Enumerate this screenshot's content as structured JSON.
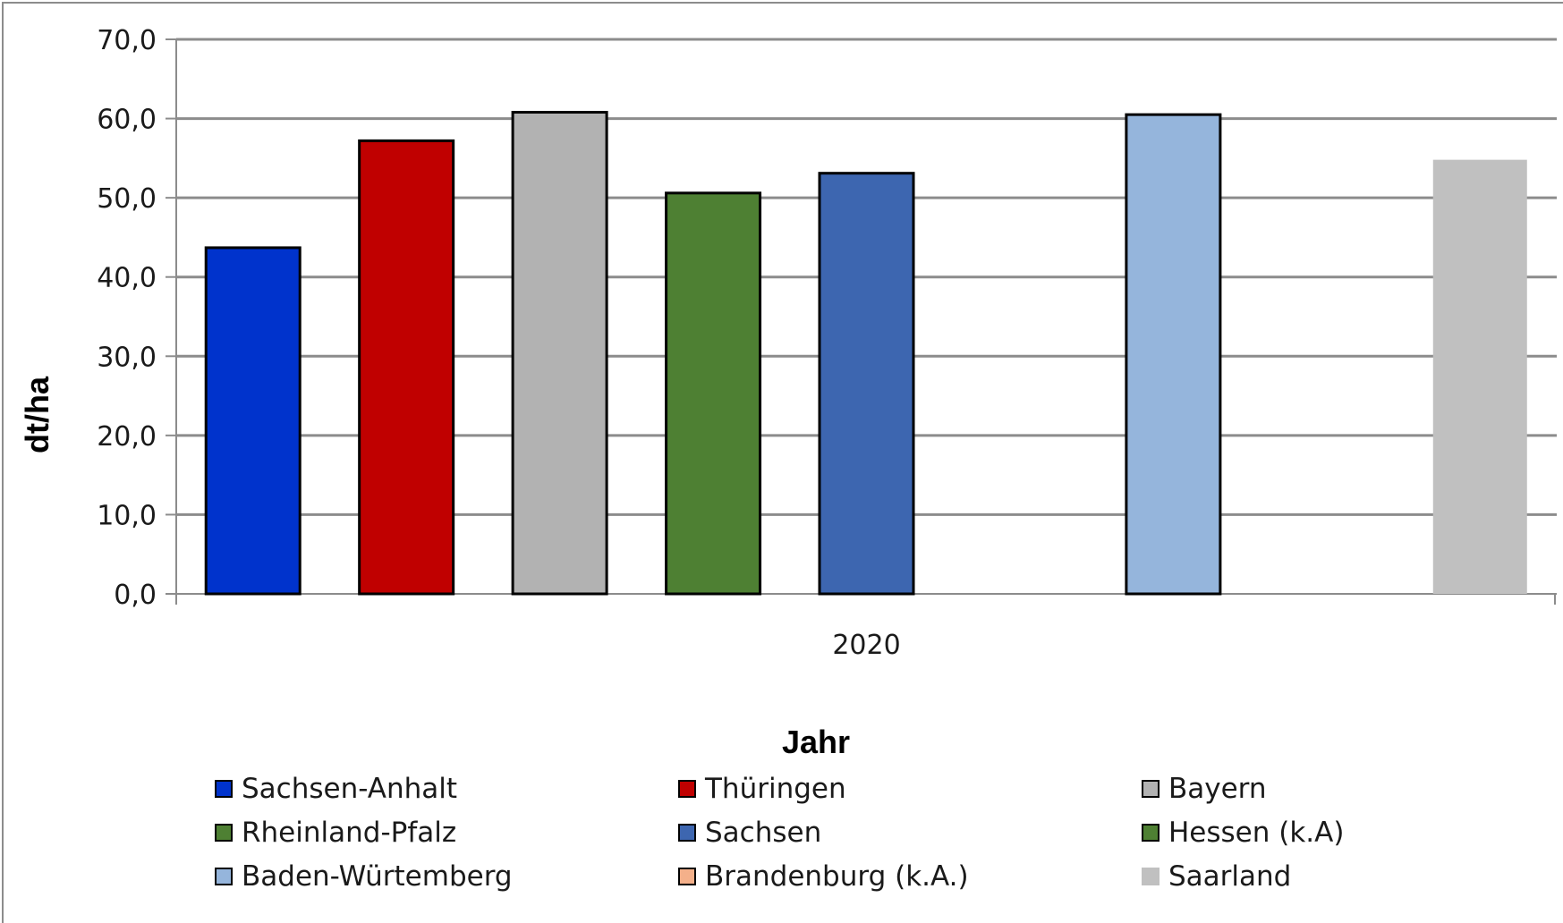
{
  "chart_data": {
    "type": "bar",
    "categories": [
      "2020"
    ],
    "xlabel": "Jahr",
    "ylabel": "dt/ha",
    "ylim": [
      0,
      70
    ],
    "yticks": [
      "0,0",
      "10,0",
      "20,0",
      "30,0",
      "40,0",
      "50,0",
      "60,0",
      "70,0"
    ],
    "grid": true,
    "legend_position": "bottom",
    "series": [
      {
        "name": "Sachsen-Anhalt",
        "value": 43.7,
        "color": "#0033cc",
        "outlined": true
      },
      {
        "name": "Thüringen",
        "value": 57.2,
        "color": "#c00000",
        "outlined": true
      },
      {
        "name": "Bayern",
        "value": 60.8,
        "color": "#b2b2b2",
        "outlined": true
      },
      {
        "name": "Rheinland-Pfalz",
        "value": 50.6,
        "color": "#4e8033",
        "outlined": true
      },
      {
        "name": "Sachsen",
        "value": 53.1,
        "color": "#3d66b0",
        "outlined": true
      },
      {
        "name": "Hessen (k.A)",
        "value": null,
        "color": "#4e8033",
        "outlined": true
      },
      {
        "name": "Baden-Würtemberg",
        "value": 60.5,
        "color": "#95b5dc",
        "outlined": true
      },
      {
        "name": "Brandenburg (k.A.)",
        "value": null,
        "color": "#f4b08a",
        "outlined": true
      },
      {
        "name": "Saarland",
        "value": 54.8,
        "color": "#c0c0c0",
        "outlined": false
      }
    ]
  }
}
